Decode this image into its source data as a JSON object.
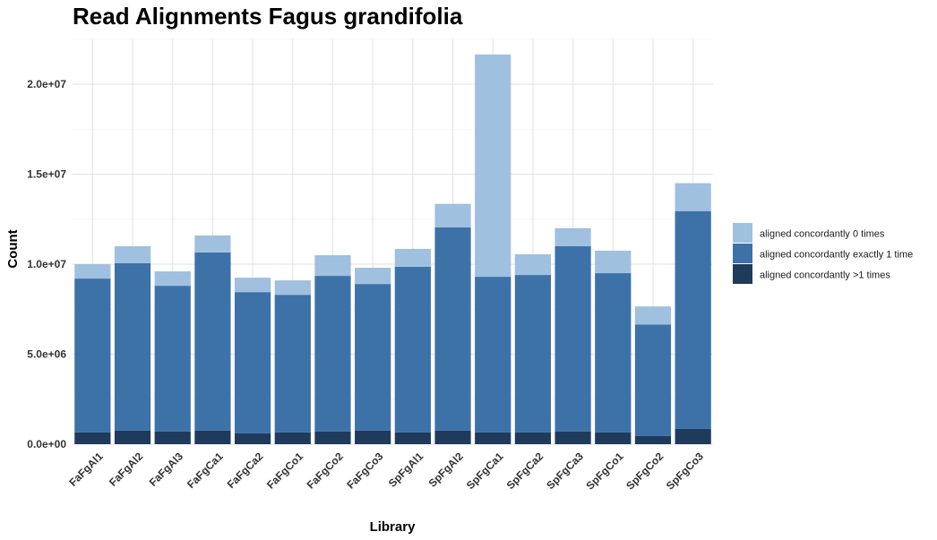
{
  "chart_data": {
    "type": "bar",
    "stacked": true,
    "title": "Read Alignments Fagus grandifolia",
    "xlabel": "Library",
    "ylabel": "Count",
    "ylim": [
      0,
      22500000
    ],
    "yticks": [
      0,
      5000000,
      10000000,
      15000000,
      20000000
    ],
    "ytick_labels": [
      "0.0e+00",
      "5.0e+06",
      "1.0e+07",
      "1.5e+07",
      "2.0e+07"
    ],
    "grid": true,
    "legend_position": "right",
    "categories": [
      "FaFgAl1",
      "FaFgAl2",
      "FaFgAl3",
      "FaFgCa1",
      "FaFgCa2",
      "FaFgCo1",
      "FaFgCo2",
      "FaFgCo3",
      "SpFgAl1",
      "SpFgAl2",
      "SpFgCa1",
      "SpFgCa2",
      "SpFgCa3",
      "SpFgCo1",
      "SpFgCo2",
      "SpFgCo3"
    ],
    "series": [
      {
        "name": "aligned concordantly >1 times",
        "color": "#1f3b5c",
        "values": [
          650000,
          750000,
          700000,
          750000,
          600000,
          650000,
          700000,
          750000,
          650000,
          750000,
          650000,
          650000,
          700000,
          650000,
          450000,
          850000
        ]
      },
      {
        "name": "aligned concordantly exactly 1 time",
        "color": "#3d72a8",
        "values": [
          8550000,
          9300000,
          8100000,
          9900000,
          7850000,
          7650000,
          8650000,
          8150000,
          9200000,
          11300000,
          8650000,
          8750000,
          10300000,
          8850000,
          6200000,
          12100000
        ]
      },
      {
        "name": "aligned concordantly 0 times",
        "color": "#9fc0de",
        "values": [
          800000,
          950000,
          800000,
          950000,
          800000,
          800000,
          1150000,
          900000,
          1000000,
          1300000,
          12350000,
          1150000,
          1000000,
          1250000,
          1000000,
          1550000
        ]
      }
    ],
    "legend_order": [
      "aligned concordantly 0 times",
      "aligned concordantly exactly 1 time",
      "aligned concordantly >1 times"
    ]
  }
}
